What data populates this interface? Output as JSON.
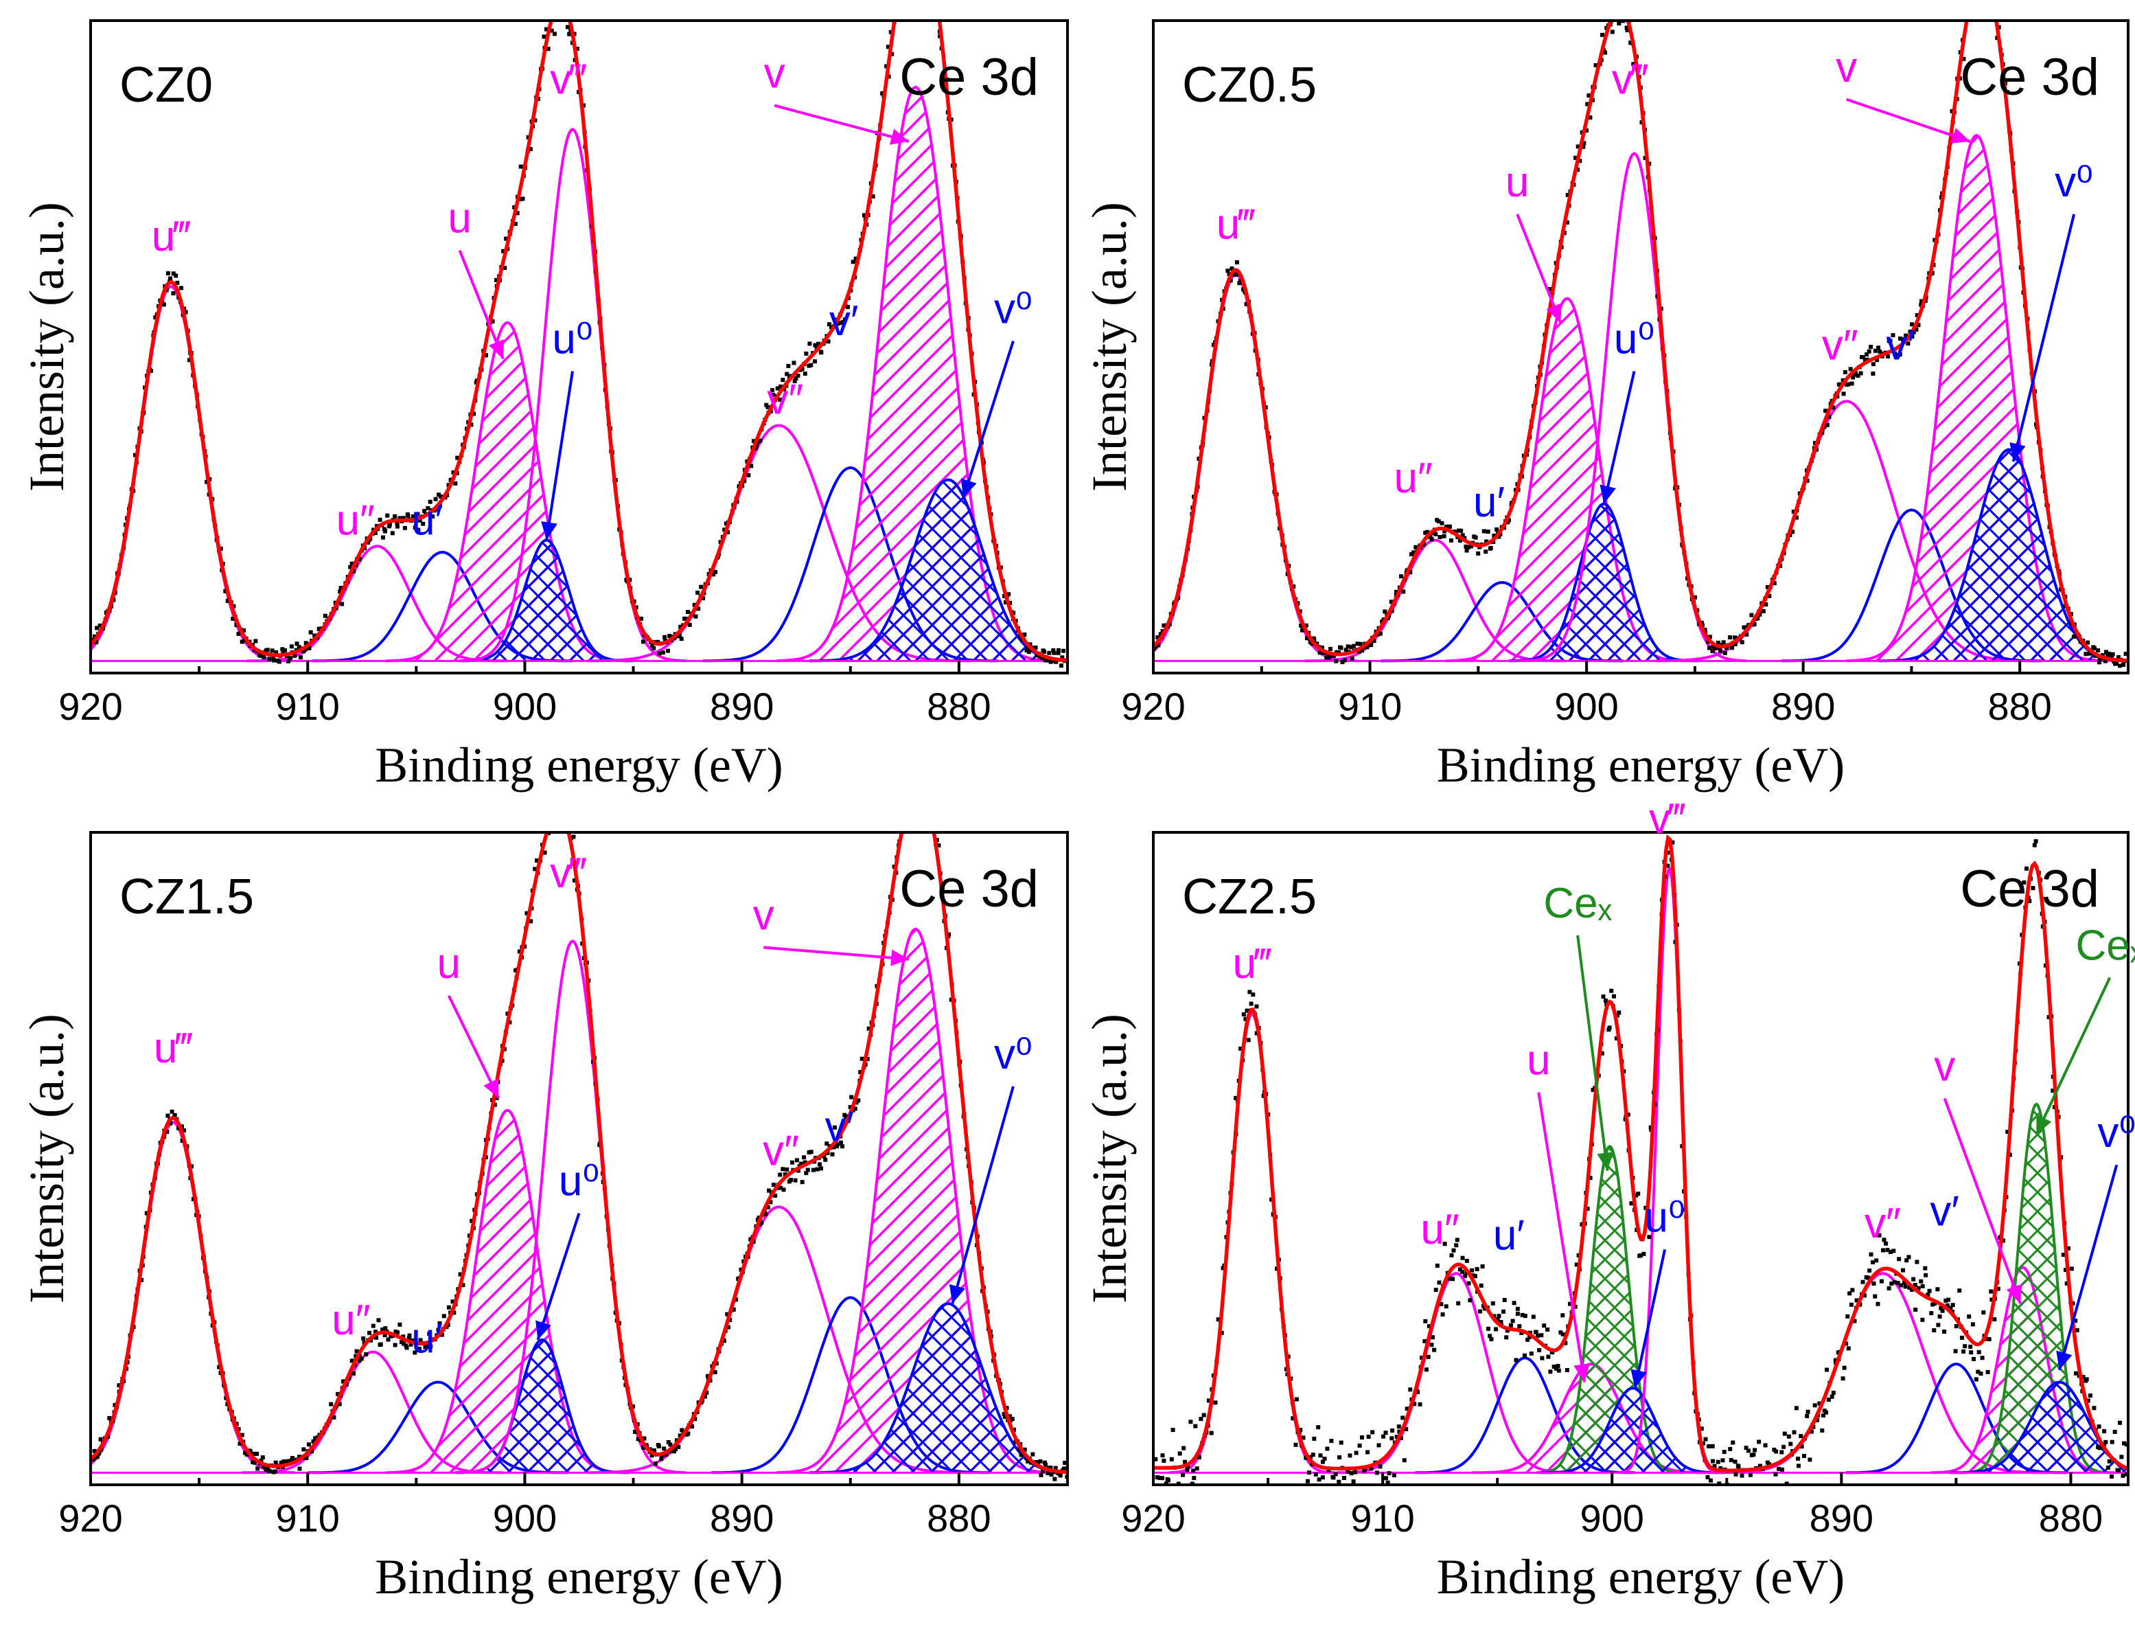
{
  "chart_data": [
    {
      "type": "line",
      "sample": "CZ0",
      "region": "Ce 3d",
      "xlabel": "Binding energy (eV)",
      "ylabel": "Intensity (a.u.)",
      "xlim": [
        920,
        875
      ],
      "xticks": [
        920,
        910,
        900,
        890,
        880
      ],
      "ylim": [
        0,
        1.08
      ],
      "noise": 0.015,
      "components": [
        {
          "name": "u‴",
          "center": 916.3,
          "height": 0.62,
          "width": 1.4,
          "color": "#ff00ff",
          "hatch": "none"
        },
        {
          "name": "u″",
          "center": 906.8,
          "height": 0.19,
          "width": 1.5,
          "color": "#ff00ff",
          "hatch": "none"
        },
        {
          "name": "u′",
          "center": 903.8,
          "height": 0.18,
          "width": 1.5,
          "color": "#0000ff",
          "hatch": "none"
        },
        {
          "name": "u",
          "center": 900.8,
          "height": 0.56,
          "width": 1.4,
          "color": "#ff00ff",
          "hatch": "diag"
        },
        {
          "name": "u⁰",
          "center": 899.0,
          "height": 0.2,
          "width": 1.0,
          "color": "#0000ff",
          "hatch": "cross"
        },
        {
          "name": "v‴",
          "center": 897.8,
          "height": 0.88,
          "width": 1.3,
          "color": "#ff00ff",
          "hatch": "none"
        },
        {
          "name": "v″",
          "center": 888.3,
          "height": 0.39,
          "width": 2.2,
          "color": "#ff00ff",
          "hatch": "none"
        },
        {
          "name": "v′",
          "center": 885.0,
          "height": 0.32,
          "width": 1.7,
          "color": "#0000ff",
          "hatch": "none"
        },
        {
          "name": "v",
          "center": 882.0,
          "height": 0.95,
          "width": 1.6,
          "color": "#ff00ff",
          "hatch": "diag"
        },
        {
          "name": "v⁰",
          "center": 880.5,
          "height": 0.3,
          "width": 1.6,
          "color": "#0000ff",
          "hatch": "cross"
        }
      ],
      "annotations": [
        {
          "text": "u‴",
          "color": "#ff00ff",
          "x": 916.3,
          "y": 0.69
        },
        {
          "text": "u″",
          "color": "#ff00ff",
          "x": 907.8,
          "y": 0.22
        },
        {
          "text": "u′",
          "color": "#0000ff",
          "x": 904.5,
          "y": 0.22
        },
        {
          "text": "u",
          "color": "#ff00ff",
          "x": 903.0,
          "y": 0.72,
          "arrow_to": [
            901.0,
            0.52
          ]
        },
        {
          "text": "u⁰",
          "color": "#0000ff",
          "x": 897.8,
          "y": 0.52,
          "arrow_to": [
            899.0,
            0.22
          ]
        },
        {
          "text": "v‴",
          "color": "#ff00ff",
          "x": 898.0,
          "y": 0.95
        },
        {
          "text": "v″",
          "color": "#ff00ff",
          "x": 888.0,
          "y": 0.42
        },
        {
          "text": "v′",
          "color": "#0000ff",
          "x": 885.3,
          "y": 0.55
        },
        {
          "text": "v",
          "color": "#ff00ff",
          "x": 888.5,
          "y": 0.96,
          "arrow_to": [
            882.3,
            0.88
          ]
        },
        {
          "text": "v⁰",
          "color": "#0000ff",
          "x": 877.5,
          "y": 0.57,
          "arrow_to": [
            879.8,
            0.29
          ]
        }
      ]
    },
    {
      "type": "line",
      "sample": "CZ0.5",
      "region": "Ce 3d",
      "xlabel": "Binding energy (eV)",
      "ylabel": "Intensity (a.u.)",
      "xlim": [
        920,
        875
      ],
      "xticks": [
        920,
        910,
        900,
        890,
        880
      ],
      "ylim": [
        0,
        1.08
      ],
      "noise": 0.015,
      "components": [
        {
          "name": "u‴",
          "center": 916.2,
          "height": 0.64,
          "width": 1.4,
          "color": "#ff00ff",
          "hatch": "none"
        },
        {
          "name": "u″",
          "center": 907.0,
          "height": 0.2,
          "width": 1.5,
          "color": "#ff00ff",
          "hatch": "none"
        },
        {
          "name": "u′",
          "center": 903.9,
          "height": 0.13,
          "width": 1.4,
          "color": "#0000ff",
          "hatch": "none"
        },
        {
          "name": "u",
          "center": 900.9,
          "height": 0.6,
          "width": 1.4,
          "color": "#ff00ff",
          "hatch": "diag"
        },
        {
          "name": "u⁰",
          "center": 899.2,
          "height": 0.26,
          "width": 1.1,
          "color": "#0000ff",
          "hatch": "cross"
        },
        {
          "name": "v‴",
          "center": 897.8,
          "height": 0.84,
          "width": 1.3,
          "color": "#ff00ff",
          "hatch": "none"
        },
        {
          "name": "v″",
          "center": 888.0,
          "height": 0.43,
          "width": 2.2,
          "color": "#ff00ff",
          "hatch": "none"
        },
        {
          "name": "v′",
          "center": 885.0,
          "height": 0.25,
          "width": 1.5,
          "color": "#0000ff",
          "hatch": "none"
        },
        {
          "name": "v",
          "center": 882.0,
          "height": 0.87,
          "width": 1.5,
          "color": "#ff00ff",
          "hatch": "diag"
        },
        {
          "name": "v⁰",
          "center": 880.5,
          "height": 0.35,
          "width": 1.5,
          "color": "#0000ff",
          "hatch": "cross"
        }
      ],
      "annotations": [
        {
          "text": "u‴",
          "color": "#ff00ff",
          "x": 916.2,
          "y": 0.71
        },
        {
          "text": "u″",
          "color": "#ff00ff",
          "x": 908.0,
          "y": 0.29
        },
        {
          "text": "u′",
          "color": "#0000ff",
          "x": 904.5,
          "y": 0.25
        },
        {
          "text": "u",
          "color": "#ff00ff",
          "x": 903.2,
          "y": 0.78,
          "arrow_to": [
            901.2,
            0.58
          ]
        },
        {
          "text": "u⁰",
          "color": "#0000ff",
          "x": 897.8,
          "y": 0.52,
          "arrow_to": [
            899.2,
            0.28
          ]
        },
        {
          "text": "v‴",
          "color": "#ff00ff",
          "x": 898.0,
          "y": 0.95
        },
        {
          "text": "v″",
          "color": "#ff00ff",
          "x": 888.3,
          "y": 0.51
        },
        {
          "text": "v′",
          "color": "#0000ff",
          "x": 885.5,
          "y": 0.51
        },
        {
          "text": "v",
          "color": "#ff00ff",
          "x": 888.0,
          "y": 0.97,
          "arrow_to": [
            882.3,
            0.88
          ]
        },
        {
          "text": "v⁰",
          "color": "#0000ff",
          "x": 877.5,
          "y": 0.78,
          "arrow_to": [
            880.3,
            0.35
          ]
        }
      ]
    },
    {
      "type": "line",
      "sample": "CZ1.5",
      "region": "Ce 3d",
      "xlabel": "Binding energy (eV)",
      "ylabel": "Intensity (a.u.)",
      "xlim": [
        920,
        875
      ],
      "xticks": [
        920,
        910,
        900,
        890,
        880
      ],
      "ylim": [
        0,
        1.08
      ],
      "noise": 0.015,
      "components": [
        {
          "name": "u‴",
          "center": 916.2,
          "height": 0.58,
          "width": 1.4,
          "color": "#ff00ff",
          "hatch": "none"
        },
        {
          "name": "u″",
          "center": 907.0,
          "height": 0.2,
          "width": 1.5,
          "color": "#ff00ff",
          "hatch": "none"
        },
        {
          "name": "u′",
          "center": 904.0,
          "height": 0.15,
          "width": 1.5,
          "color": "#0000ff",
          "hatch": "none"
        },
        {
          "name": "u",
          "center": 900.8,
          "height": 0.6,
          "width": 1.4,
          "color": "#ff00ff",
          "hatch": "diag"
        },
        {
          "name": "u⁰",
          "center": 899.2,
          "height": 0.22,
          "width": 1.0,
          "color": "#0000ff",
          "hatch": "cross"
        },
        {
          "name": "v‴",
          "center": 897.8,
          "height": 0.88,
          "width": 1.3,
          "color": "#ff00ff",
          "hatch": "none"
        },
        {
          "name": "v″",
          "center": 888.3,
          "height": 0.44,
          "width": 2.2,
          "color": "#ff00ff",
          "hatch": "none"
        },
        {
          "name": "v′",
          "center": 885.0,
          "height": 0.29,
          "width": 1.6,
          "color": "#0000ff",
          "hatch": "none"
        },
        {
          "name": "v",
          "center": 882.0,
          "height": 0.9,
          "width": 1.6,
          "color": "#ff00ff",
          "hatch": "diag"
        },
        {
          "name": "v⁰",
          "center": 880.5,
          "height": 0.28,
          "width": 1.6,
          "color": "#0000ff",
          "hatch": "cross"
        }
      ],
      "annotations": [
        {
          "text": "u‴",
          "color": "#ff00ff",
          "x": 916.2,
          "y": 0.69
        },
        {
          "text": "u″",
          "color": "#ff00ff",
          "x": 908.0,
          "y": 0.24
        },
        {
          "text": "u′",
          "color": "#0000ff",
          "x": 904.5,
          "y": 0.21
        },
        {
          "text": "u",
          "color": "#ff00ff",
          "x": 903.5,
          "y": 0.83,
          "arrow_to": [
            901.2,
            0.64
          ]
        },
        {
          "text": "u⁰",
          "color": "#0000ff",
          "x": 897.5,
          "y": 0.47,
          "arrow_to": [
            899.4,
            0.24
          ]
        },
        {
          "text": "v‴",
          "color": "#ff00ff",
          "x": 898.0,
          "y": 0.98
        },
        {
          "text": "v″",
          "color": "#ff00ff",
          "x": 888.2,
          "y": 0.52
        },
        {
          "text": "v′",
          "color": "#0000ff",
          "x": 885.5,
          "y": 0.56
        },
        {
          "text": "v",
          "color": "#ff00ff",
          "x": 889.0,
          "y": 0.91,
          "arrow_to": [
            882.3,
            0.87
          ]
        },
        {
          "text": "v⁰",
          "color": "#0000ff",
          "x": 877.5,
          "y": 0.68,
          "arrow_to": [
            880.3,
            0.3
          ]
        }
      ]
    },
    {
      "type": "line",
      "sample": "CZ2.5",
      "region": "Ce 3d",
      "xlabel": "Binding energy (eV)",
      "ylabel": "Intensity (a.u.)",
      "xlim": [
        920,
        877.5
      ],
      "xticks": [
        920,
        910,
        900,
        890,
        880
      ],
      "ylim": [
        0,
        1.08
      ],
      "noise": 0.06,
      "components": [
        {
          "name": "u‴",
          "center": 915.7,
          "height": 0.76,
          "width": 0.9,
          "color": "#ff00ff",
          "hatch": "none"
        },
        {
          "name": "u″",
          "center": 906.8,
          "height": 0.33,
          "width": 1.3,
          "color": "#ff00ff",
          "hatch": "none"
        },
        {
          "name": "u′",
          "center": 903.8,
          "height": 0.19,
          "width": 1.2,
          "color": "#0000ff",
          "hatch": "none"
        },
        {
          "name": "u",
          "center": 900.9,
          "height": 0.18,
          "width": 1.3,
          "color": "#ff00ff",
          "hatch": "diag"
        },
        {
          "name": "Ceₓ",
          "center": 900.1,
          "height": 0.54,
          "width": 0.8,
          "color": "#1e8c1e",
          "hatch": "cross"
        },
        {
          "name": "u⁰",
          "center": 899.1,
          "height": 0.14,
          "width": 1.0,
          "color": "#0000ff",
          "hatch": "cross"
        },
        {
          "name": "v‴",
          "center": 897.5,
          "height": 1.0,
          "width": 0.55,
          "color": "#ff00ff",
          "hatch": "none"
        },
        {
          "name": "v″",
          "center": 888.2,
          "height": 0.33,
          "width": 1.8,
          "color": "#ff00ff",
          "hatch": "none"
        },
        {
          "name": "v′",
          "center": 885.0,
          "height": 0.18,
          "width": 1.2,
          "color": "#0000ff",
          "hatch": "none"
        },
        {
          "name": "v",
          "center": 882.1,
          "height": 0.34,
          "width": 1.0,
          "color": "#ff00ff",
          "hatch": "diag"
        },
        {
          "name": "Ceₓ",
          "center": 881.5,
          "height": 0.61,
          "width": 0.8,
          "color": "#1e8c1e",
          "hatch": "cross"
        },
        {
          "name": "v⁰",
          "center": 880.5,
          "height": 0.15,
          "width": 1.2,
          "color": "#0000ff",
          "hatch": "cross"
        }
      ],
      "annotations": [
        {
          "text": "u‴",
          "color": "#ff00ff",
          "x": 915.7,
          "y": 0.83
        },
        {
          "text": "u″",
          "color": "#ff00ff",
          "x": 907.5,
          "y": 0.39
        },
        {
          "text": "u′",
          "color": "#0000ff",
          "x": 904.5,
          "y": 0.38
        },
        {
          "text": "u",
          "color": "#ff00ff",
          "x": 903.2,
          "y": 0.67,
          "arrow_to": [
            901.2,
            0.17
          ]
        },
        {
          "text": "Ceₓ",
          "color": "#1e8c1e",
          "x": 901.5,
          "y": 0.93,
          "arrow_to": [
            900.2,
            0.52
          ]
        },
        {
          "text": "u⁰",
          "color": "#0000ff",
          "x": 897.7,
          "y": 0.41,
          "arrow_to": [
            899.0,
            0.16
          ]
        },
        {
          "text": "v‴",
          "color": "#ff00ff",
          "x": 897.6,
          "y": 1.07
        },
        {
          "text": "v″",
          "color": "#ff00ff",
          "x": 888.2,
          "y": 0.4
        },
        {
          "text": "v′",
          "color": "#0000ff",
          "x": 885.5,
          "y": 0.42
        },
        {
          "text": "v",
          "color": "#ff00ff",
          "x": 885.5,
          "y": 0.66,
          "arrow_to": [
            882.2,
            0.3
          ]
        },
        {
          "text": "Ceₓ",
          "color": "#1e8c1e",
          "x": 878.3,
          "y": 0.86,
          "arrow_to": [
            881.5,
            0.58
          ]
        },
        {
          "text": "v⁰",
          "color": "#0000ff",
          "x": 878.0,
          "y": 0.55,
          "arrow_to": [
            880.5,
            0.19
          ]
        }
      ]
    }
  ]
}
